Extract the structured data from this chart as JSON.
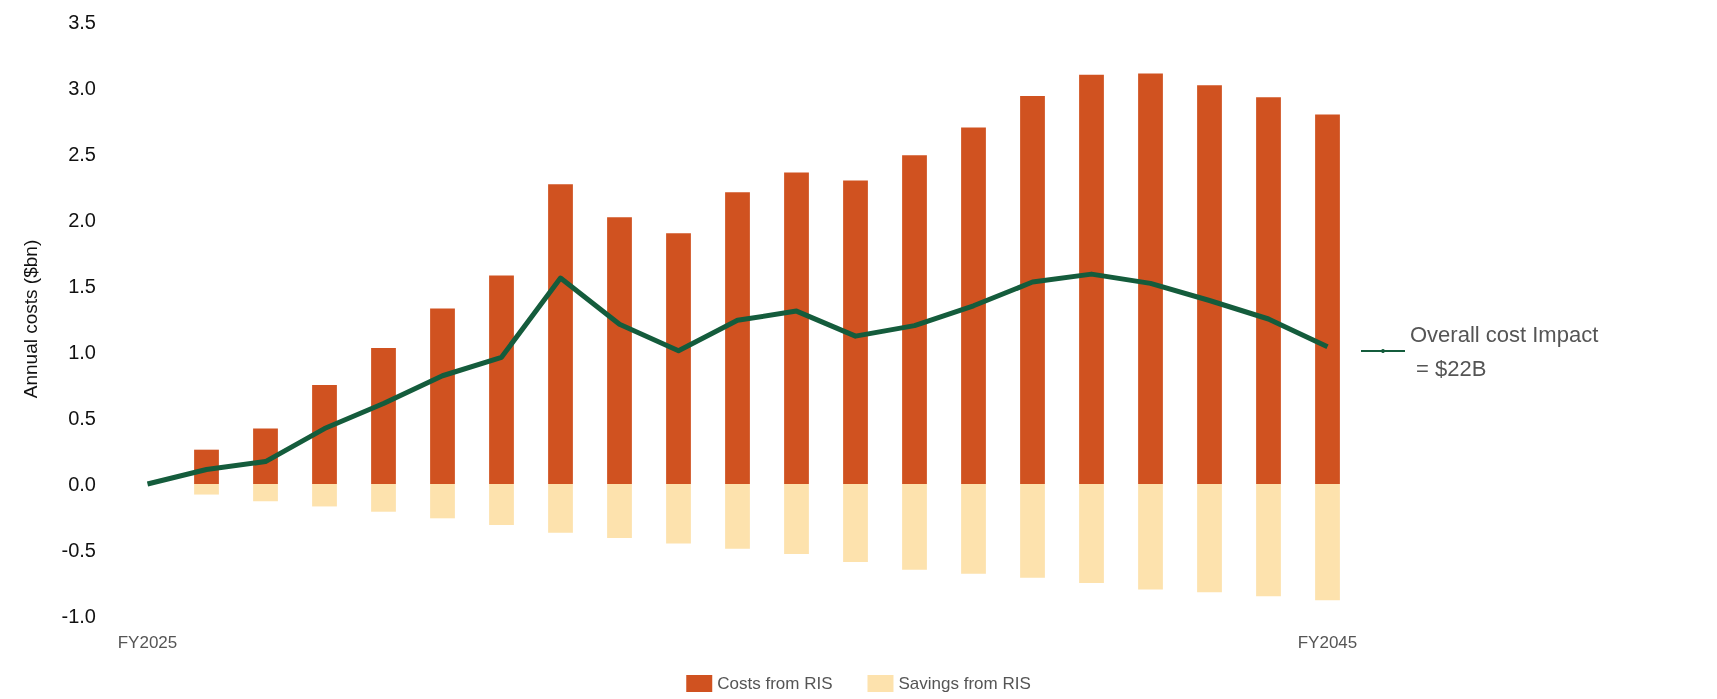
{
  "chart_data": {
    "type": "bar",
    "stacked": true,
    "ylabel": "Annual costs ($bn)",
    "categories": [
      "FY2025",
      null,
      null,
      null,
      null,
      null,
      null,
      null,
      null,
      null,
      null,
      null,
      null,
      null,
      null,
      null,
      null,
      null,
      null,
      null,
      "FY2045"
    ],
    "series": [
      {
        "name": "Costs from RIS",
        "color": "#d05220",
        "values": [
          null,
          0.26,
          0.42,
          0.75,
          1.03,
          1.33,
          1.58,
          2.27,
          2.02,
          1.9,
          2.21,
          2.36,
          2.3,
          2.49,
          2.7,
          2.94,
          3.1,
          3.11,
          3.02,
          2.93,
          2.8
        ]
      },
      {
        "name": "Savings from RIS",
        "color": "#fde2ad",
        "values": [
          null,
          -0.08,
          -0.13,
          -0.17,
          -0.21,
          -0.26,
          -0.31,
          -0.37,
          -0.41,
          -0.45,
          -0.49,
          -0.53,
          -0.59,
          -0.65,
          -0.68,
          -0.71,
          -0.75,
          -0.8,
          -0.82,
          -0.85,
          -0.88
        ]
      },
      {
        "name": "Overall cost Impact\n = $22B",
        "type": "line",
        "color": "#145c3c",
        "values": [
          0,
          0.11,
          0.17,
          0.42,
          0.61,
          0.82,
          0.96,
          1.56,
          1.21,
          1.01,
          1.24,
          1.31,
          1.12,
          1.2,
          1.35,
          1.53,
          1.59,
          1.52,
          1.39,
          1.25,
          1.04
        ]
      }
    ],
    "ylim": [
      -1,
      3.5
    ],
    "yticks": [
      {
        "value": -1,
        "label": "-1.0"
      },
      {
        "value": -0.5,
        "label": "-0.5"
      },
      {
        "value": 0,
        "label": "0.0"
      },
      {
        "value": 0.5,
        "label": "0.5"
      },
      {
        "value": 1,
        "label": "1.0"
      },
      {
        "value": 1.5,
        "label": "1.5"
      },
      {
        "value": 2,
        "label": "2.0"
      },
      {
        "value": 2.5,
        "label": "2.5"
      },
      {
        "value": 3,
        "label": "3.0"
      },
      {
        "value": 3.5,
        "label": "3.5"
      }
    ],
    "grid": false,
    "legend": "bottom",
    "marker": "none"
  }
}
